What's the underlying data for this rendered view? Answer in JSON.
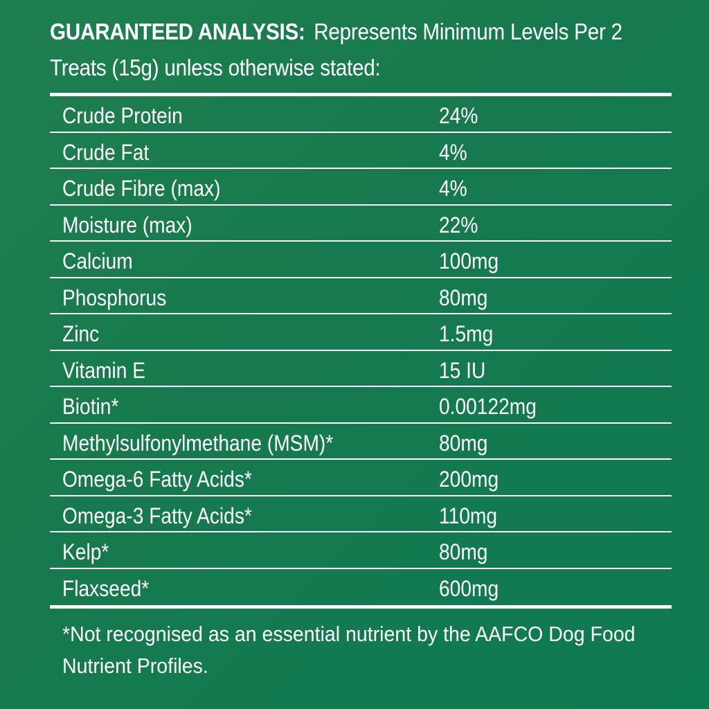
{
  "heading": {
    "bold": "GUARANTEED ANALYSIS:",
    "line1": "Represents Minimum Levels Per 2",
    "line2": "Treats (15g) unless otherwise stated:"
  },
  "rows": [
    {
      "name": "Crude Protein",
      "value": "24%"
    },
    {
      "name": "Crude Fat",
      "value": "4%"
    },
    {
      "name": "Crude Fibre (max)",
      "value": "4%"
    },
    {
      "name": "Moisture (max)",
      "value": "22%"
    },
    {
      "name": "Calcium",
      "value": "100mg"
    },
    {
      "name": "Phosphorus",
      "value": "80mg"
    },
    {
      "name": "Zinc",
      "value": "1.5mg"
    },
    {
      "name": "Vitamin E",
      "value": "15 IU"
    },
    {
      "name": "Biotin*",
      "value": "0.00122mg"
    },
    {
      "name": "Methylsulfonylmethane (MSM)*",
      "value": "80mg"
    },
    {
      "name": "Omega-6 Fatty Acids*",
      "value": "200mg"
    },
    {
      "name": "Omega-3 Fatty Acids*",
      "value": "110mg"
    },
    {
      "name": "Kelp*",
      "value": "80mg"
    },
    {
      "name": "Flaxseed*",
      "value": "600mg"
    }
  ],
  "footnote": {
    "line1": "*Not recognised as an essential nutrient by the AAFCO Dog Food",
    "line2": "Nutrient Profiles."
  }
}
